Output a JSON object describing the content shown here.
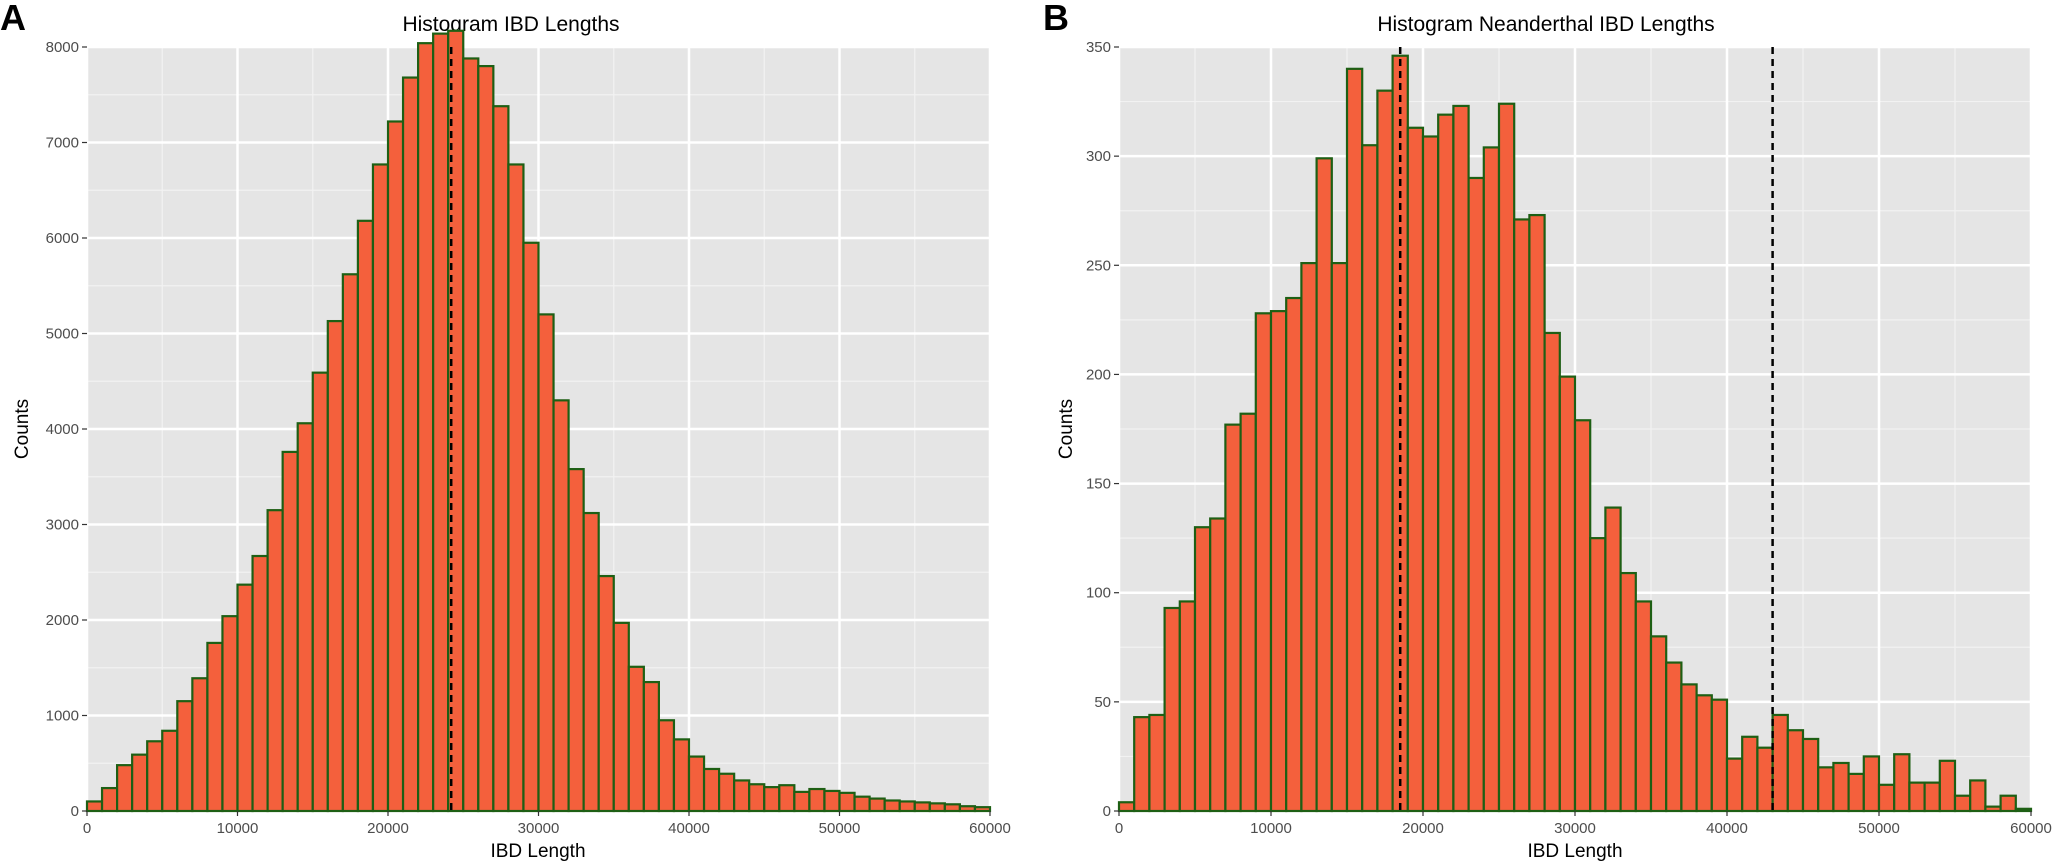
{
  "chart_data": [
    {
      "panel": "A",
      "type": "bar",
      "title": "Histogram IBD Lengths",
      "xlabel": "IBD Length",
      "ylabel": "Counts",
      "xlim": [
        0,
        60000
      ],
      "ylim": [
        0,
        8000
      ],
      "xticks": [
        0,
        10000,
        20000,
        30000,
        40000,
        50000,
        60000
      ],
      "yticks": [
        0,
        1000,
        2000,
        3000,
        4000,
        5000,
        6000,
        7000,
        8000
      ],
      "bin_width": 1000,
      "x": [
        0,
        1000,
        2000,
        3000,
        4000,
        5000,
        6000,
        7000,
        8000,
        9000,
        10000,
        11000,
        12000,
        13000,
        14000,
        15000,
        16000,
        17000,
        18000,
        19000,
        20000,
        21000,
        22000,
        23000,
        24000,
        25000,
        26000,
        27000,
        28000,
        29000,
        30000,
        31000,
        32000,
        33000,
        34000,
        35000,
        36000,
        37000,
        38000,
        39000,
        40000,
        41000,
        42000,
        43000,
        44000,
        45000,
        46000,
        47000,
        48000,
        49000,
        50000,
        51000,
        52000,
        53000,
        54000,
        55000,
        56000,
        57000,
        58000,
        59000
      ],
      "values": [
        100,
        240,
        480,
        590,
        730,
        840,
        1150,
        1390,
        1760,
        2040,
        2370,
        2670,
        3150,
        3760,
        4060,
        4590,
        5130,
        5620,
        6180,
        6770,
        7220,
        7680,
        8040,
        8140,
        8170,
        7880,
        7800,
        7380,
        6770,
        5950,
        5200,
        4300,
        3580,
        3120,
        2460,
        1970,
        1510,
        1350,
        950,
        750,
        570,
        440,
        390,
        320,
        280,
        250,
        270,
        200,
        230,
        210,
        190,
        150,
        130,
        110,
        100,
        90,
        80,
        70,
        50,
        40
      ],
      "vlines": [
        24200
      ],
      "fill_color": "#f4603c",
      "edge_color": "#1e5f14",
      "grid": true
    },
    {
      "panel": "B",
      "type": "bar",
      "title": "Histogram Neanderthal IBD Lengths",
      "xlabel": "IBD Length",
      "ylabel": "Counts",
      "xlim": [
        0,
        60000
      ],
      "ylim": [
        0,
        350
      ],
      "xticks": [
        0,
        10000,
        20000,
        30000,
        40000,
        50000,
        60000
      ],
      "yticks": [
        0,
        50,
        100,
        150,
        200,
        250,
        300,
        350
      ],
      "bin_width": 1000,
      "x": [
        0,
        1000,
        2000,
        3000,
        4000,
        5000,
        6000,
        7000,
        8000,
        9000,
        10000,
        11000,
        12000,
        13000,
        14000,
        15000,
        16000,
        17000,
        18000,
        19000,
        20000,
        21000,
        22000,
        23000,
        24000,
        25000,
        26000,
        27000,
        28000,
        29000,
        30000,
        31000,
        32000,
        33000,
        34000,
        35000,
        36000,
        37000,
        38000,
        39000,
        40000,
        41000,
        42000,
        43000,
        44000,
        45000,
        46000,
        47000,
        48000,
        49000,
        50000,
        51000,
        52000,
        53000,
        54000,
        55000,
        56000,
        57000,
        58000,
        59000
      ],
      "values": [
        4,
        43,
        44,
        93,
        96,
        130,
        134,
        177,
        182,
        228,
        229,
        235,
        251,
        299,
        251,
        340,
        305,
        330,
        346,
        313,
        309,
        319,
        323,
        290,
        304,
        324,
        271,
        273,
        219,
        199,
        179,
        125,
        139,
        109,
        96,
        80,
        68,
        58,
        53,
        51,
        24,
        34,
        29,
        44,
        37,
        33,
        20,
        22,
        17,
        25,
        12,
        26,
        13,
        13,
        23,
        7,
        14,
        2,
        7,
        1
      ],
      "vlines": [
        18500,
        43000
      ],
      "fill_color": "#f4603c",
      "edge_color": "#1e5f14",
      "grid": true
    }
  ]
}
